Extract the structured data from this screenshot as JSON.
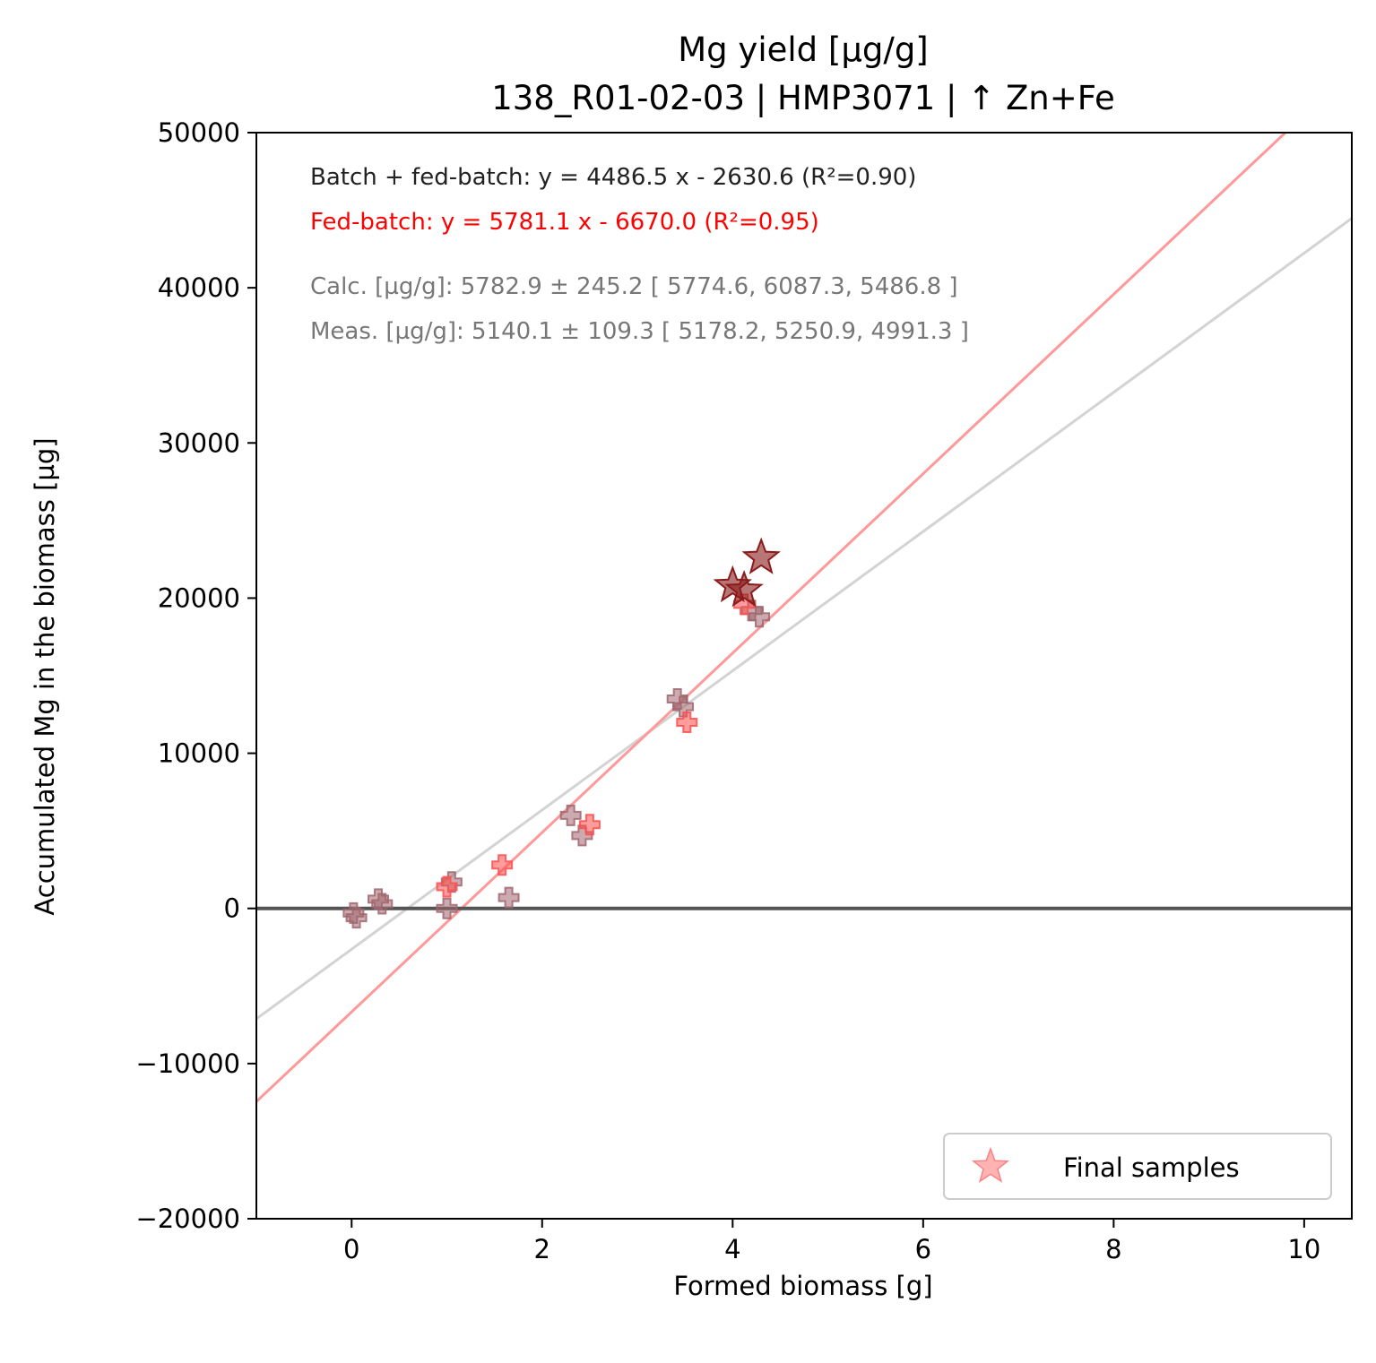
{
  "chart_data": {
    "type": "scatter",
    "title": "Mg yield [µg/g]",
    "subtitle": "138_R01-02-03  |  HMP3071  |  ↑ Zn+Fe",
    "xlabel": "Formed biomass [g]",
    "ylabel": "Accumulated Mg in the biomass [µg]",
    "xlim": [
      -1,
      10.5
    ],
    "ylim": [
      -20000,
      50000
    ],
    "xticks": [
      0,
      2,
      4,
      6,
      8,
      10
    ],
    "yticks": [
      -20000,
      -10000,
      0,
      10000,
      20000,
      30000,
      40000,
      50000
    ],
    "xtick_labels": [
      "0",
      "2",
      "4",
      "6",
      "8",
      "10"
    ],
    "ytick_labels": [
      "−20000",
      "−10000",
      "0",
      "10000",
      "20000",
      "30000",
      "40000",
      "50000"
    ],
    "grid": false,
    "annotations": [
      {
        "text": "Batch + fed-batch: y = 4486.5 x - 2630.6 (R²=0.90)",
        "color": "#222222"
      },
      {
        "text": "Fed-batch: y = 5781.1 x - 6670.0 (R²=0.95)",
        "color": "#ff0000"
      },
      {
        "text": "Calc. [µg/g]: 5782.9 ± 245.2 [ 5774.6, 6087.3, 5486.8 ]",
        "color": "#777777"
      },
      {
        "text": "Meas. [µg/g]: 5140.1 ± 109.3 [ 5178.2, 5250.9, 4991.3 ]",
        "color": "#777777"
      }
    ],
    "fit_lines": [
      {
        "label": "Batch + fed-batch",
        "slope": 4486.5,
        "intercept": -2630.6,
        "color": "#d3d3d3"
      },
      {
        "label": "Fed-batch",
        "slope": 5781.1,
        "intercept": -6670.0,
        "color": "#ff9999"
      }
    ],
    "zero_line": {
      "y": 0,
      "color": "#555555"
    },
    "series": [
      {
        "marker": "plus",
        "color": "#a0666e",
        "points": [
          {
            "x": 0.02,
            "y": -300
          },
          {
            "x": 0.05,
            "y": -600
          },
          {
            "x": 0.28,
            "y": 600
          },
          {
            "x": 0.32,
            "y": 300
          },
          {
            "x": 1.05,
            "y": 1700
          },
          {
            "x": 1.0,
            "y": 0
          },
          {
            "x": 1.65,
            "y": 700
          },
          {
            "x": 2.3,
            "y": 6000
          },
          {
            "x": 2.42,
            "y": 4700
          },
          {
            "x": 3.42,
            "y": 13500
          },
          {
            "x": 3.48,
            "y": 13000
          },
          {
            "x": 4.2,
            "y": 19200
          },
          {
            "x": 4.28,
            "y": 18800
          }
        ]
      },
      {
        "marker": "plus",
        "color": "#ff4d4d",
        "points": [
          {
            "x": 1.0,
            "y": 1400
          },
          {
            "x": 1.58,
            "y": 2800
          },
          {
            "x": 2.5,
            "y": 5400
          },
          {
            "x": 3.52,
            "y": 12000
          },
          {
            "x": 4.12,
            "y": 19600
          }
        ]
      },
      {
        "name": "Final samples",
        "marker": "star",
        "color": "#8b1a1a",
        "points": [
          {
            "x": 4.0,
            "y": 20800
          },
          {
            "x": 4.12,
            "y": 20500
          },
          {
            "x": 4.3,
            "y": 22600
          }
        ]
      }
    ],
    "legend": {
      "placement": "lower-right",
      "entries": [
        "Final samples"
      ]
    }
  }
}
